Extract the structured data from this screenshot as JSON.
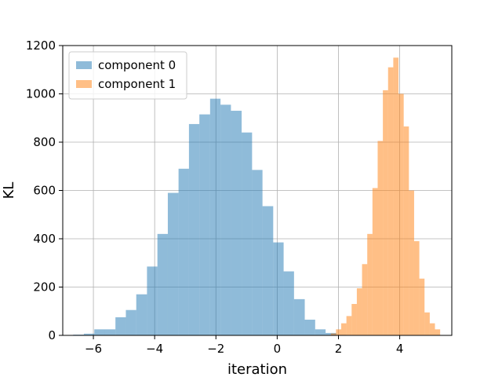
{
  "chart_data": {
    "type": "bar",
    "xlabel": "iteration",
    "ylabel": "KL",
    "xlim": [
      -7.0,
      5.7
    ],
    "ylim": [
      0,
      1200
    ],
    "x_ticks": [
      -6,
      -4,
      -2,
      0,
      2,
      4
    ],
    "y_ticks": [
      0,
      200,
      400,
      600,
      800,
      1000,
      1200
    ],
    "grid": true,
    "legend_position": "top-left",
    "series": [
      {
        "name": "component 0",
        "color": "#1f77b4",
        "alpha": 0.5,
        "bin_edges": [
          -6.66,
          -6.31,
          -5.97,
          -5.63,
          -5.28,
          -4.94,
          -4.6,
          -4.25,
          -3.91,
          -3.57,
          -3.22,
          -2.88,
          -2.54,
          -2.19,
          -1.85,
          -1.51,
          -1.16,
          -0.82,
          -0.48,
          -0.13,
          0.21,
          0.55,
          0.9,
          1.24,
          1.58,
          1.93,
          2.27
        ],
        "counts": [
          3,
          7,
          25,
          25,
          75,
          105,
          170,
          285,
          420,
          590,
          690,
          875,
          915,
          980,
          955,
          930,
          840,
          685,
          535,
          385,
          265,
          150,
          65,
          25,
          10,
          2
        ]
      },
      {
        "name": "component 1",
        "color": "#ff7f0e",
        "alpha": 0.5,
        "bin_edges": [
          1.75,
          1.92,
          2.09,
          2.26,
          2.43,
          2.6,
          2.77,
          2.94,
          3.11,
          3.28,
          3.45,
          3.62,
          3.79,
          3.96,
          4.13,
          4.3,
          4.47,
          4.64,
          4.81,
          4.98,
          5.15,
          5.32
        ],
        "counts": [
          8,
          25,
          50,
          80,
          130,
          195,
          295,
          420,
          610,
          805,
          1015,
          1110,
          1150,
          1000,
          865,
          600,
          390,
          235,
          95,
          50,
          25
        ]
      }
    ]
  }
}
